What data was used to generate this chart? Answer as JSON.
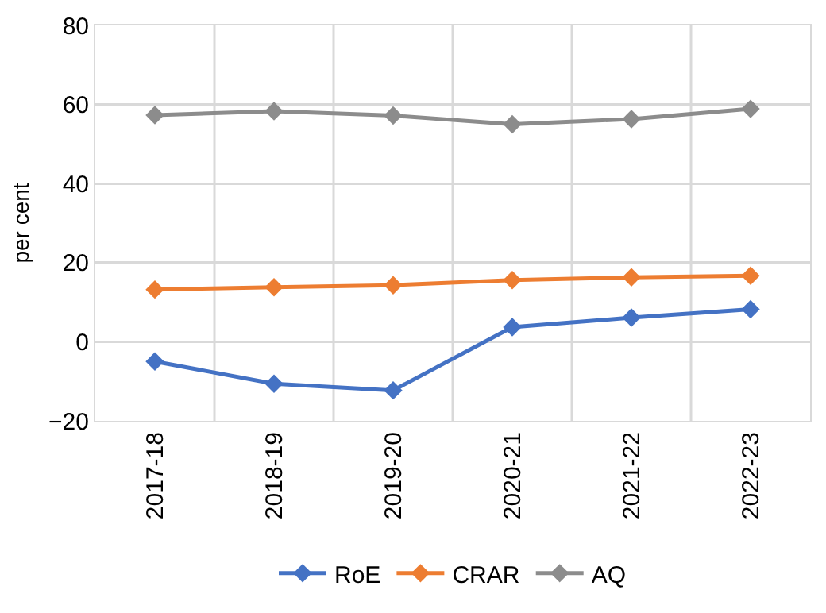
{
  "chart_data": {
    "type": "line",
    "ylabel": "per cent",
    "categories": [
      "2017-18",
      "2018-19",
      "2019-20",
      "2020-21",
      "2021-22",
      "2022-23"
    ],
    "series": [
      {
        "name": "RoE",
        "color": "#4472c4",
        "values": [
          -5.0,
          -10.6,
          -12.3,
          3.7,
          6.1,
          8.2
        ]
      },
      {
        "name": "CRAR",
        "color": "#ed7d31",
        "values": [
          13.2,
          13.8,
          14.3,
          15.6,
          16.3,
          16.7
        ]
      },
      {
        "name": "AQ",
        "color": "#8c8c8c",
        "values": [
          57.3,
          58.3,
          57.2,
          55.0,
          56.3,
          58.9
        ]
      }
    ],
    "ylim": [
      -20,
      80
    ],
    "yticks": [
      -20,
      0,
      20,
      40,
      60,
      80
    ],
    "grid": true,
    "legend": "bottom",
    "marker": "diamond",
    "line_style": "solid"
  }
}
